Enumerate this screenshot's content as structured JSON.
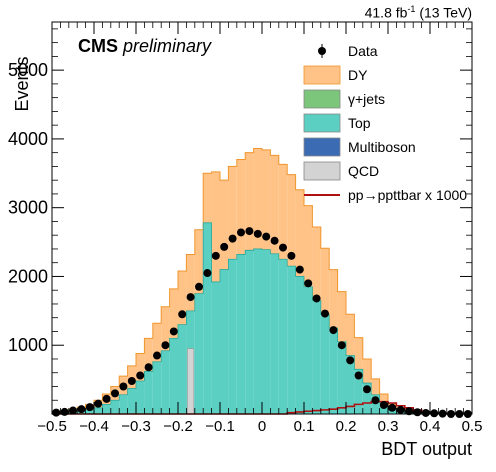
{
  "header": {
    "lumi_value": "41.8 fb",
    "lumi_exp": "-1",
    "lumi_energy": " (13 TeV)",
    "experiment": "CMS",
    "status": "preliminary"
  },
  "colors": {
    "dy": "#ffc287",
    "dy_edge": "#f0962d",
    "gjets": "#7bc67a",
    "top": "#5ccfc3",
    "multiboson": "#3a6bb3",
    "qcd": "#d3d3d3",
    "signal": "#b01010",
    "data": "#000000"
  },
  "chart_data": {
    "type": "bar",
    "title": "",
    "xlabel": "BDT output",
    "ylabel": "Events",
    "xlim": [
      -0.5,
      0.5
    ],
    "ylim": [
      0,
      5700
    ],
    "bin_width": 0.02,
    "bin_start": -0.49,
    "x_ticks": [
      "−0.5",
      "−0.4",
      "−0.3",
      "−0.2",
      "−0.1",
      "0",
      "0.1",
      "0.2",
      "0.3",
      "0.4",
      "0.5"
    ],
    "x_tick_values": [
      -0.5,
      -0.4,
      -0.3,
      -0.2,
      -0.1,
      0,
      0.1,
      0.2,
      0.3,
      0.4,
      0.5
    ],
    "y_ticks": [
      "1000",
      "2000",
      "3000",
      "4000",
      "5000"
    ],
    "y_tick_values": [
      1000,
      2000,
      3000,
      4000,
      5000
    ],
    "legend": [
      {
        "key": "data",
        "label": "Data",
        "style": "marker"
      },
      {
        "key": "dy",
        "label": "DY",
        "style": "box"
      },
      {
        "key": "gjets",
        "label": "γ+jets",
        "style": "box"
      },
      {
        "key": "top",
        "label": "Top",
        "style": "box"
      },
      {
        "key": "multiboson",
        "label": "Multiboson",
        "style": "box"
      },
      {
        "key": "qcd",
        "label": "QCD",
        "style": "box"
      },
      {
        "key": "signal",
        "label": "pp→ppttbar x 1000",
        "style": "line"
      }
    ],
    "series": [
      {
        "name": "Top",
        "key": "top",
        "values": [
          10,
          15,
          25,
          40,
          60,
          90,
          140,
          200,
          280,
          370,
          480,
          620,
          760,
          920,
          1100,
          1300,
          1500,
          1750,
          2780,
          1920,
          2100,
          2250,
          2320,
          2380,
          2400,
          2390,
          2330,
          2250,
          2150,
          2000,
          1850,
          1650,
          1450,
          1250,
          1050,
          850,
          650,
          450,
          280,
          160,
          80,
          40,
          20,
          10,
          5,
          0,
          0,
          0,
          0,
          0
        ]
      },
      {
        "name": "DY",
        "key": "dy",
        "values": [
          20,
          30,
          45,
          60,
          80,
          110,
          150,
          200,
          270,
          330,
          400,
          480,
          560,
          640,
          720,
          780,
          820,
          930,
          720,
          1600,
          1300,
          1350,
          1380,
          1420,
          1460,
          1450,
          1430,
          1380,
          1330,
          1260,
          1180,
          1070,
          960,
          850,
          730,
          600,
          460,
          350,
          230,
          130,
          70,
          40,
          20,
          10,
          5,
          0,
          0,
          0,
          0,
          0
        ]
      },
      {
        "name": "QCD",
        "key": "qcd",
        "values": [
          0,
          0,
          0,
          0,
          0,
          0,
          0,
          0,
          0,
          0,
          0,
          0,
          0,
          0,
          0,
          0,
          950,
          0,
          0,
          0,
          0,
          0,
          0,
          0,
          0,
          0,
          0,
          0,
          0,
          0,
          0,
          0,
          0,
          0,
          0,
          0,
          0,
          0,
          0,
          0,
          0,
          0,
          0,
          0,
          0,
          0,
          0,
          0,
          0,
          0
        ]
      },
      {
        "name": "pp→ppttbar x 1000",
        "key": "signal",
        "values": [
          0,
          0,
          0,
          0,
          0,
          0,
          0,
          0,
          0,
          0,
          0,
          0,
          0,
          0,
          0,
          0,
          0,
          0,
          0,
          0,
          0,
          0,
          0,
          0,
          0,
          0,
          0,
          0,
          20,
          30,
          40,
          50,
          60,
          70,
          90,
          110,
          140,
          160,
          180,
          180,
          160,
          120,
          90,
          60,
          30,
          10,
          5,
          0,
          0,
          0
        ]
      },
      {
        "name": "Data",
        "key": "data",
        "values": [
          20,
          30,
          50,
          70,
          100,
          150,
          220,
          300,
          400,
          480,
          560,
          680,
          850,
          1000,
          1200,
          1450,
          1700,
          1850,
          2050,
          2300,
          2430,
          2550,
          2640,
          2660,
          2620,
          2580,
          2520,
          2420,
          2300,
          2100,
          1900,
          1680,
          1460,
          1220,
          1000,
          780,
          560,
          360,
          200,
          130,
          90,
          60,
          40,
          25,
          15,
          10,
          5,
          0,
          0,
          0
        ]
      }
    ]
  }
}
